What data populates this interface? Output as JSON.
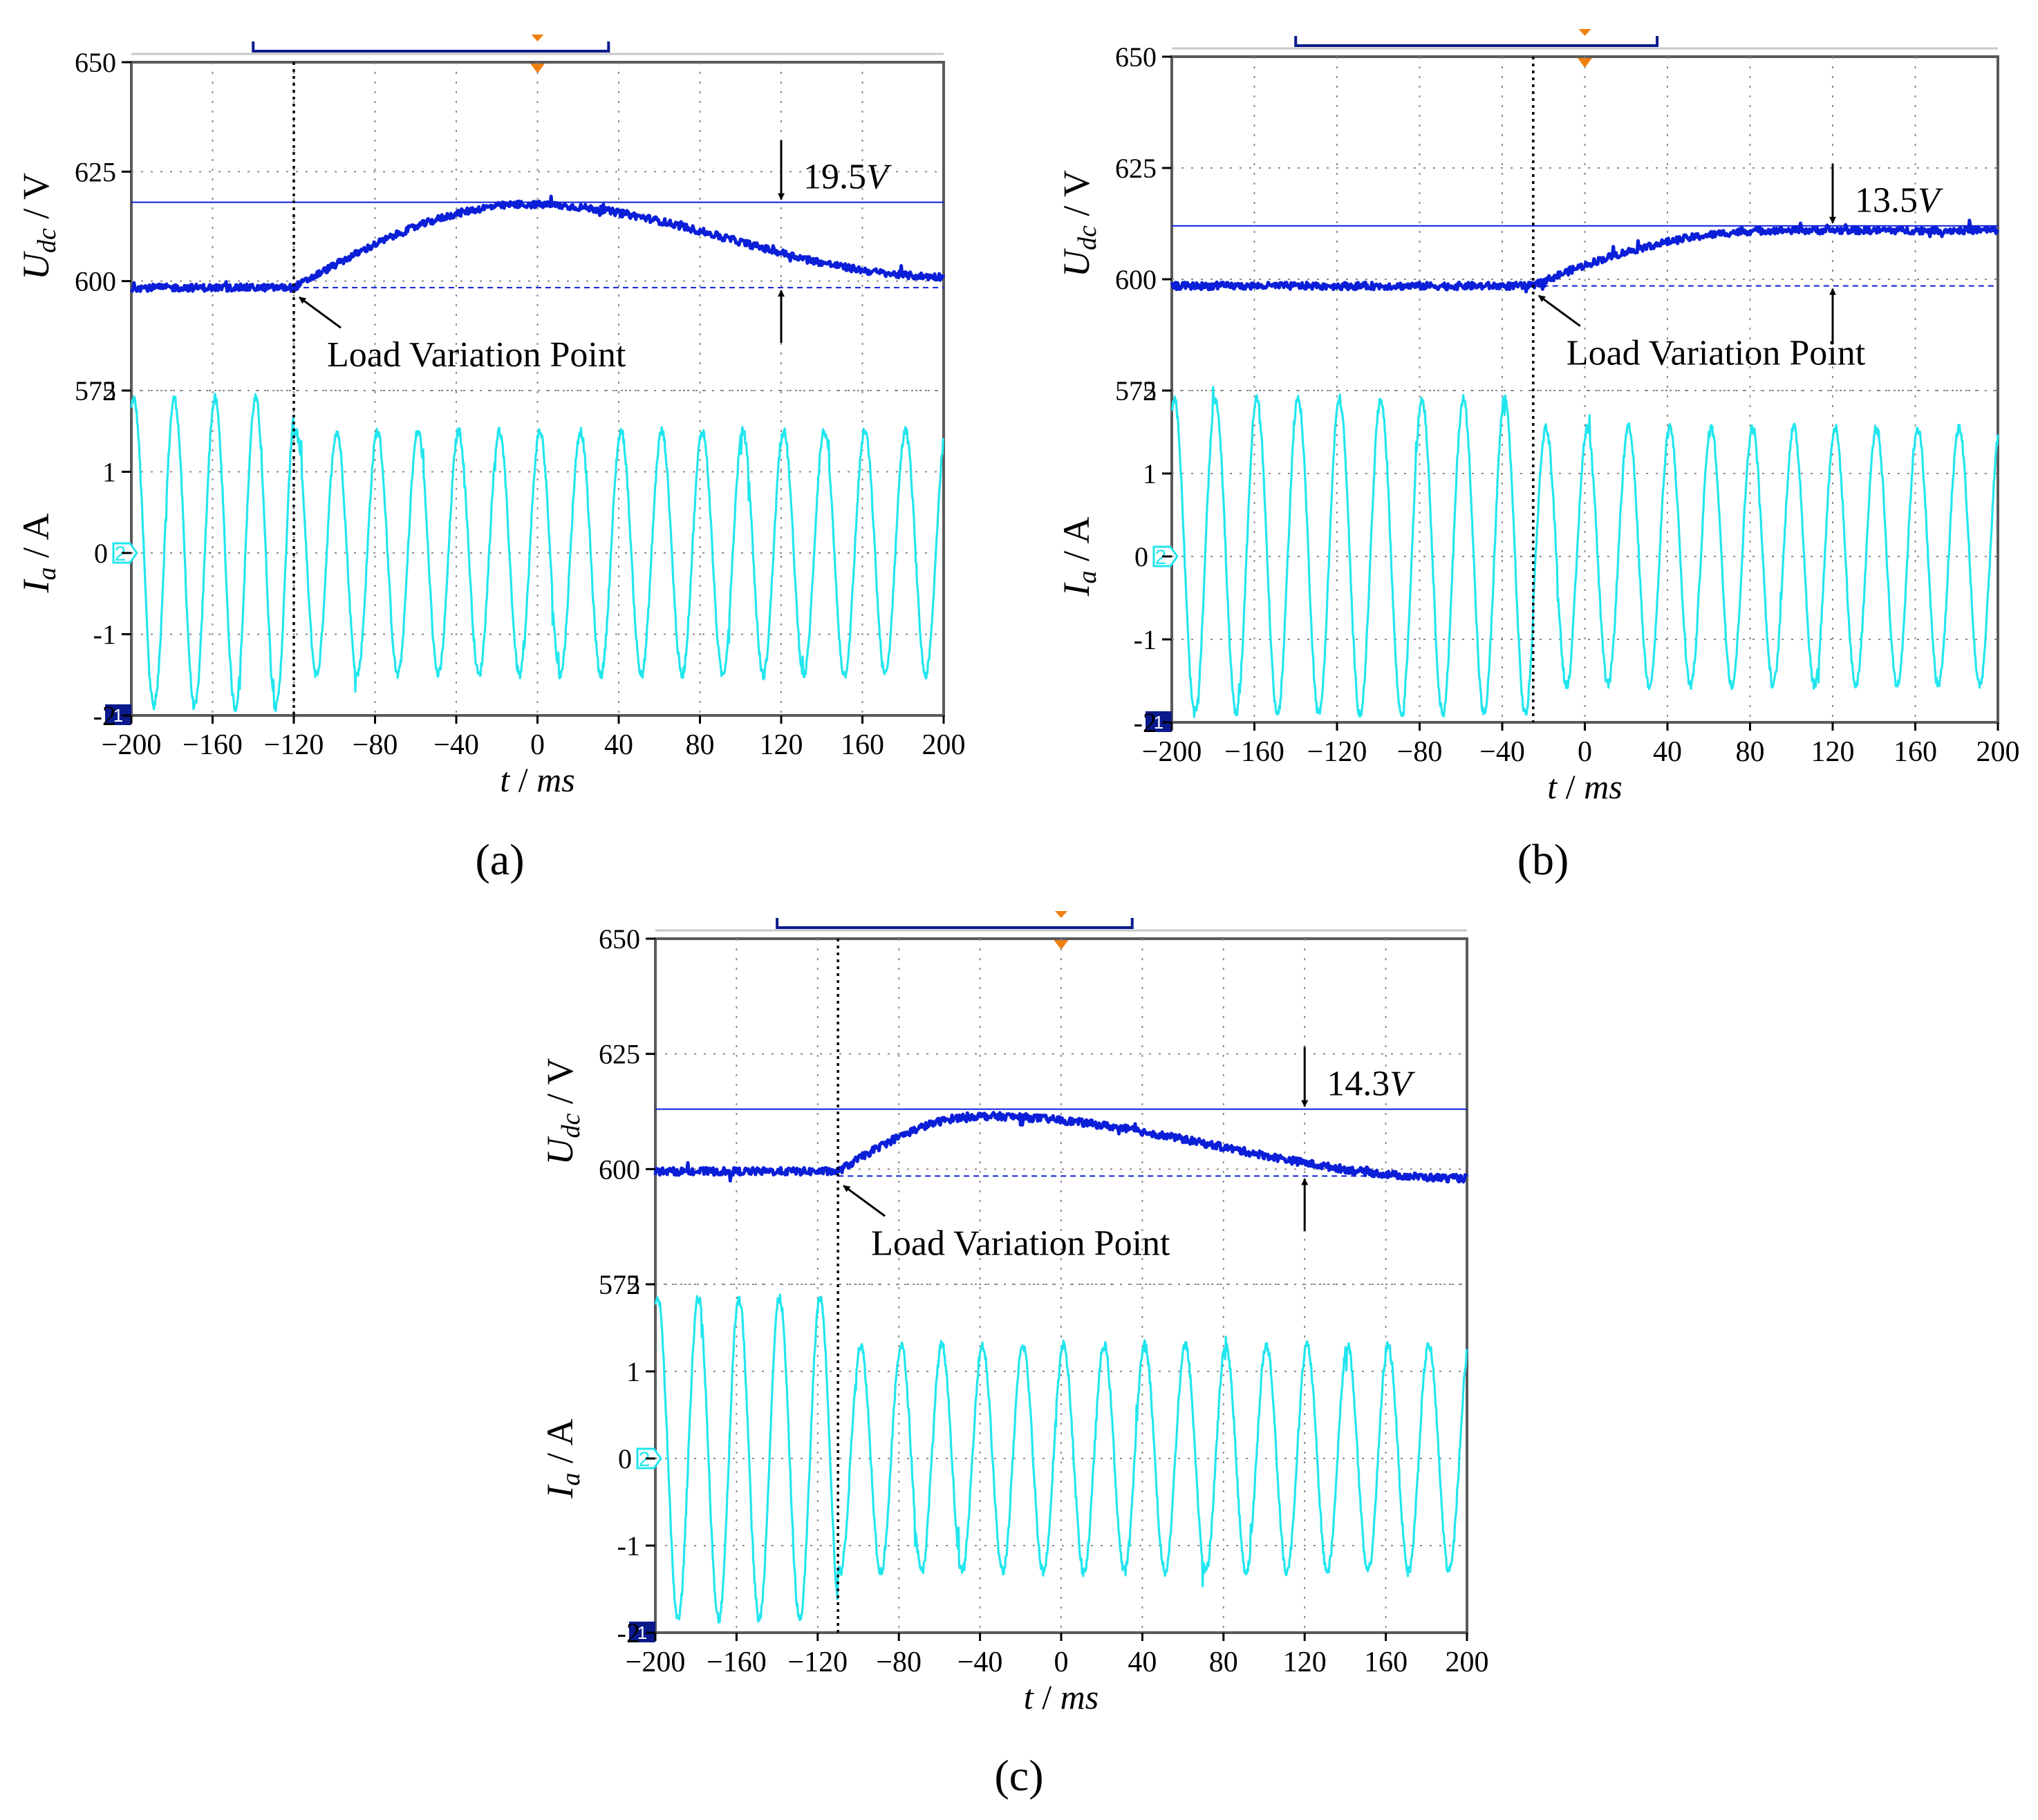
{
  "colors": {
    "udc_trace": "#0b1ed8",
    "ia_trace": "#22e6ee",
    "grid": "#8a8a8a",
    "frame": "#5a5a5a",
    "trigger": "#f08010",
    "marker_box": "#0a1a8c",
    "text": "#000000"
  },
  "axis_labels": {
    "x_unit": "ms",
    "x_var": "t",
    "udc_var": "U",
    "udc_sub": "dc",
    "udc_unit": "V",
    "ia_var": "I",
    "ia_sub": "a",
    "ia_unit": "A",
    "slash": " / "
  },
  "markers": {
    "channel1": "1",
    "channel2": "2"
  },
  "chart_data": [
    {
      "id": "a",
      "caption": "(a)",
      "type": "line",
      "x": {
        "label": "t / ms",
        "min": -200,
        "max": 200,
        "ticks": [
          -200,
          -160,
          -120,
          -80,
          -40,
          0,
          40,
          80,
          120,
          160,
          200
        ]
      },
      "udc": {
        "label": "Udc / V",
        "ylim": [
          575,
          650
        ],
        "ticks": [
          650,
          625,
          600,
          575
        ],
        "steady_before": 598.5,
        "peak": 617.5,
        "peak_time": -5,
        "final": 601,
        "reference_line": 618,
        "baseline_line": 598.5,
        "load_variation_time": -120,
        "annotation": "19.5",
        "annotation_unit": "V",
        "annotation_time": 120,
        "load_label": "Load Variation Point"
      },
      "ia": {
        "label": "Ia / A",
        "ylim": [
          -2,
          2
        ],
        "ticks": [
          2,
          1,
          0,
          -1,
          -2
        ],
        "amplitude_before": 1.9,
        "amplitude_after": 1.5,
        "period_ms": 20
      }
    },
    {
      "id": "b",
      "caption": "(b)",
      "type": "line",
      "x": {
        "label": "t / ms",
        "min": -200,
        "max": 200,
        "ticks": [
          -200,
          -160,
          -120,
          -80,
          -40,
          0,
          40,
          80,
          120,
          160,
          200
        ]
      },
      "udc": {
        "label": "Udc / V",
        "ylim": [
          575,
          650
        ],
        "ticks": [
          650,
          625,
          600,
          575
        ],
        "steady_before": 598.5,
        "peak": 611,
        "peak_time": 150,
        "final": 611,
        "reference_line": 612,
        "baseline_line": 598.5,
        "load_variation_time": -25,
        "annotation": "13.5",
        "annotation_unit": "V",
        "annotation_time": 120,
        "load_label": "Load Variation Point"
      },
      "ia": {
        "label": "Ia / A",
        "ylim": [
          -2,
          2
        ],
        "ticks": [
          2,
          1,
          0,
          -1,
          -2
        ],
        "amplitude_before": 1.9,
        "amplitude_after": 1.55,
        "period_ms": 20
      }
    },
    {
      "id": "c",
      "caption": "(c)",
      "type": "line",
      "x": {
        "label": "t / ms",
        "min": -200,
        "max": 200,
        "ticks": [
          -200,
          -160,
          -120,
          -80,
          -40,
          0,
          40,
          80,
          120,
          160,
          200
        ]
      },
      "udc": {
        "label": "Udc / V",
        "ylim": [
          575,
          650
        ],
        "ticks": [
          650,
          625,
          600,
          575
        ],
        "steady_before": 599.5,
        "peak": 611.5,
        "peak_time": -40,
        "final": 598,
        "reference_line": 613,
        "baseline_line": 598.5,
        "load_variation_time": -110,
        "annotation": "14.3",
        "annotation_unit": "V",
        "annotation_time": 120,
        "load_label": "Load Variation Point"
      },
      "ia": {
        "label": "Ia / A",
        "ylim": [
          -2,
          2
        ],
        "ticks": [
          2,
          1,
          0,
          -1,
          -2
        ],
        "amplitude_before": 1.85,
        "amplitude_after": 1.3,
        "period_ms": 20
      }
    }
  ]
}
